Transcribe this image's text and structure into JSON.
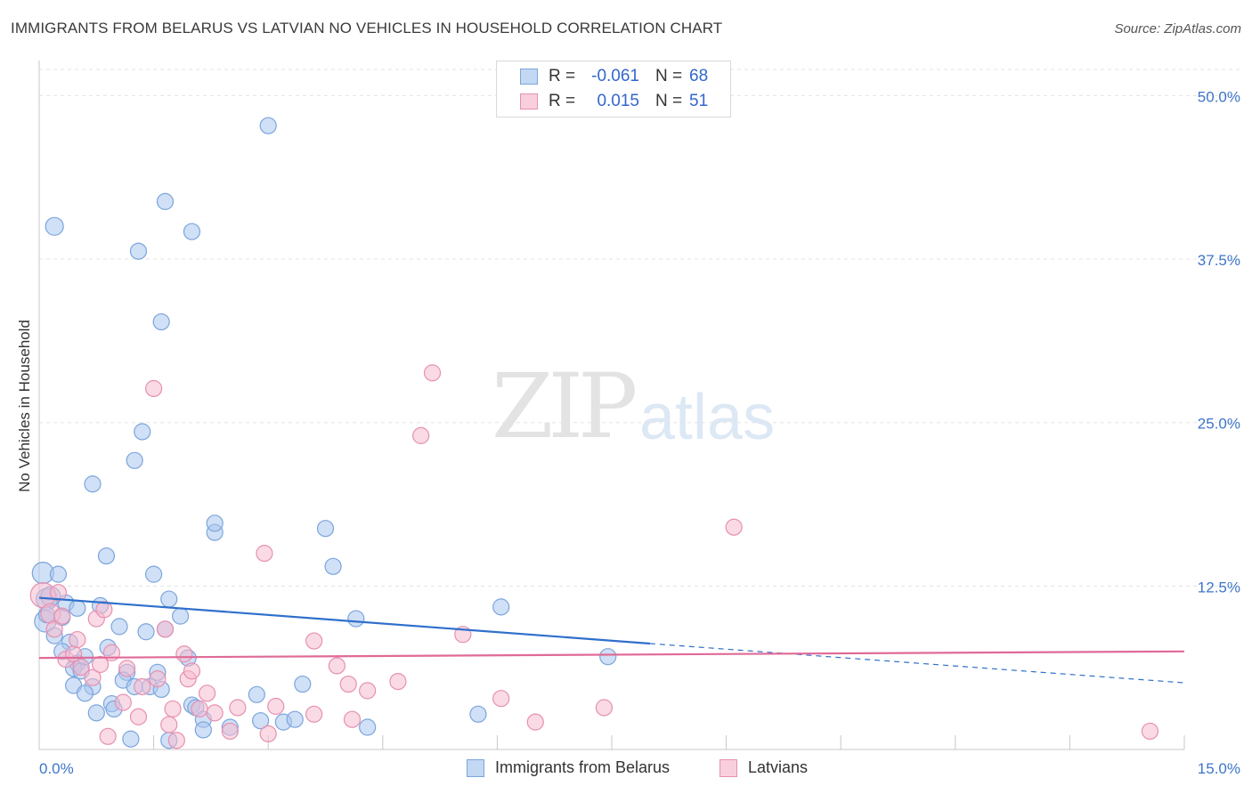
{
  "title": "IMMIGRANTS FROM BELARUS VS LATVIAN NO VEHICLES IN HOUSEHOLD CORRELATION CHART",
  "source": "Source: ZipAtlas.com",
  "watermark": {
    "zip": "ZIP",
    "atlas": "atlas"
  },
  "legend": {
    "rows": [
      {
        "r_label": "R =",
        "r_value": "-0.061",
        "n_label": "N =",
        "n_value": "68"
      },
      {
        "r_label": "R =",
        "r_value": "0.015",
        "n_label": "N =",
        "n_value": "51"
      }
    ]
  },
  "colors": {
    "belarus_fill": "#a9c7ee",
    "belarus_stroke": "#7ba5dc",
    "belarus_line": "#2f6fcc",
    "latvian_fill": "#f6bcd0",
    "latvian_stroke": "#e690b0",
    "latvian_line": "#e06a97",
    "axis_text": "#3d75c8",
    "grid": "#e3e3e3"
  },
  "chart_data": {
    "type": "scatter",
    "xlabel": "",
    "ylabel": "No Vehicles in Household",
    "xlim": [
      0,
      15
    ],
    "ylim": [
      0,
      52
    ],
    "x_ticks": [
      {
        "value": 0,
        "label": "0.0%"
      },
      {
        "value": 15,
        "label": "15.0%"
      }
    ],
    "y_ticks": [
      {
        "value": 12.5,
        "label": "12.5%"
      },
      {
        "value": 25,
        "label": "25.0%"
      },
      {
        "value": 37.5,
        "label": "37.5%"
      },
      {
        "value": 50,
        "label": "50.0%"
      }
    ],
    "grid": true,
    "legend_position": "top-center",
    "series": [
      {
        "name": "Immigrants from Belarus",
        "trend": {
          "x0": 0,
          "y0": 11.6,
          "x1": 8.0,
          "y1": 8.1,
          "dash_to_x": 15,
          "dash_to_y": 5.1
        },
        "points": [
          [
            0.05,
            13.5,
            12
          ],
          [
            0.1,
            11.5,
            12
          ],
          [
            0.08,
            9.8,
            12
          ],
          [
            0.2,
            40.0,
            10
          ],
          [
            0.25,
            13.4,
            9
          ],
          [
            0.35,
            11.2,
            9
          ],
          [
            0.3,
            10.1,
            9
          ],
          [
            0.2,
            8.7,
            9
          ],
          [
            0.4,
            8.2,
            9
          ],
          [
            0.3,
            7.5,
            9
          ],
          [
            0.5,
            10.8,
            9
          ],
          [
            0.5,
            6.6,
            9
          ],
          [
            0.45,
            6.2,
            9
          ],
          [
            0.55,
            6.0,
            9
          ],
          [
            0.6,
            7.1,
            9
          ],
          [
            0.7,
            4.8,
            9
          ],
          [
            0.45,
            4.9,
            9
          ],
          [
            0.6,
            4.3,
            9
          ],
          [
            0.8,
            11.0,
            9
          ],
          [
            0.9,
            7.8,
            9
          ],
          [
            0.75,
            2.8,
            9
          ],
          [
            0.95,
            3.5,
            9
          ],
          [
            0.98,
            3.1,
            9
          ],
          [
            1.05,
            9.4,
            9
          ],
          [
            0.88,
            14.8,
            9
          ],
          [
            0.7,
            20.3,
            9
          ],
          [
            1.3,
            38.1,
            9
          ],
          [
            1.35,
            24.3,
            9
          ],
          [
            1.25,
            22.1,
            9
          ],
          [
            1.15,
            5.9,
            9
          ],
          [
            1.1,
            5.3,
            9
          ],
          [
            1.25,
            4.8,
            9
          ],
          [
            1.4,
            9.0,
            9
          ],
          [
            1.45,
            4.8,
            9
          ],
          [
            1.5,
            13.4,
            9
          ],
          [
            1.55,
            5.9,
            9
          ],
          [
            1.6,
            4.6,
            9
          ],
          [
            1.65,
            9.2,
            9
          ],
          [
            1.6,
            32.7,
            9
          ],
          [
            1.7,
            11.5,
            9
          ],
          [
            1.65,
            41.9,
            9
          ],
          [
            1.85,
            10.2,
            9
          ],
          [
            1.95,
            7.0,
            9
          ],
          [
            2.0,
            3.4,
            9
          ],
          [
            2.05,
            3.2,
            9
          ],
          [
            2.0,
            39.6,
            9
          ],
          [
            2.15,
            2.3,
            9
          ],
          [
            2.15,
            1.5,
            9
          ],
          [
            2.3,
            16.6,
            9
          ],
          [
            2.3,
            17.3,
            9
          ],
          [
            2.5,
            1.7,
            9
          ],
          [
            2.85,
            4.2,
            9
          ],
          [
            2.9,
            2.2,
            9
          ],
          [
            3.0,
            47.7,
            9
          ],
          [
            3.2,
            2.1,
            9
          ],
          [
            3.35,
            2.3,
            9
          ],
          [
            3.45,
            5.0,
            9
          ],
          [
            3.75,
            16.9,
            9
          ],
          [
            3.85,
            14.0,
            9
          ],
          [
            4.15,
            10.0,
            9
          ],
          [
            4.3,
            1.7,
            9
          ],
          [
            5.75,
            2.7,
            9
          ],
          [
            6.05,
            10.9,
            9
          ],
          [
            7.45,
            7.1,
            9
          ],
          [
            1.2,
            0.8,
            9
          ],
          [
            1.7,
            0.7,
            9
          ],
          [
            0.15,
            11.7,
            11
          ],
          [
            0.1,
            10.3,
            9
          ]
        ]
      },
      {
        "name": "Latvians",
        "trend": {
          "x0": 0,
          "y0": 7.0,
          "x1": 15,
          "y1": 7.5
        },
        "points": [
          [
            0.05,
            11.8,
            14
          ],
          [
            0.15,
            10.4,
            11
          ],
          [
            0.2,
            9.2,
            9
          ],
          [
            0.3,
            10.2,
            9
          ],
          [
            0.35,
            6.9,
            9
          ],
          [
            0.45,
            7.3,
            9
          ],
          [
            0.5,
            8.4,
            9
          ],
          [
            0.55,
            6.3,
            9
          ],
          [
            0.7,
            5.5,
            9
          ],
          [
            0.75,
            10.0,
            9
          ],
          [
            0.8,
            6.5,
            9
          ],
          [
            0.85,
            10.7,
            9
          ],
          [
            0.95,
            7.4,
            9
          ],
          [
            1.1,
            3.6,
            9
          ],
          [
            1.15,
            6.2,
            9
          ],
          [
            1.3,
            2.5,
            9
          ],
          [
            1.35,
            4.8,
            9
          ],
          [
            1.5,
            27.6,
            9
          ],
          [
            1.55,
            5.4,
            9
          ],
          [
            1.65,
            9.2,
            9
          ],
          [
            1.7,
            1.9,
            9
          ],
          [
            1.75,
            3.1,
            9
          ],
          [
            1.9,
            7.3,
            9
          ],
          [
            1.95,
            5.4,
            9
          ],
          [
            2.0,
            6.0,
            9
          ],
          [
            2.1,
            3.1,
            9
          ],
          [
            2.2,
            4.3,
            9
          ],
          [
            2.3,
            2.8,
            9
          ],
          [
            2.5,
            1.4,
            9
          ],
          [
            2.6,
            3.2,
            9
          ],
          [
            2.95,
            15.0,
            9
          ],
          [
            3.0,
            1.2,
            9
          ],
          [
            3.1,
            3.3,
            9
          ],
          [
            3.6,
            8.3,
            9
          ],
          [
            3.6,
            2.7,
            9
          ],
          [
            3.9,
            6.4,
            9
          ],
          [
            4.05,
            5.0,
            9
          ],
          [
            4.1,
            2.3,
            9
          ],
          [
            4.3,
            4.5,
            9
          ],
          [
            4.7,
            5.2,
            9
          ],
          [
            5.0,
            24.0,
            9
          ],
          [
            5.15,
            28.8,
            9
          ],
          [
            5.55,
            8.8,
            9
          ],
          [
            6.05,
            3.9,
            9
          ],
          [
            6.5,
            2.1,
            9
          ],
          [
            7.4,
            3.2,
            9
          ],
          [
            9.1,
            17.0,
            9
          ],
          [
            14.55,
            1.4,
            9
          ],
          [
            0.9,
            1.0,
            9
          ],
          [
            1.8,
            0.7,
            9
          ],
          [
            0.25,
            12.0,
            9
          ]
        ]
      }
    ]
  }
}
